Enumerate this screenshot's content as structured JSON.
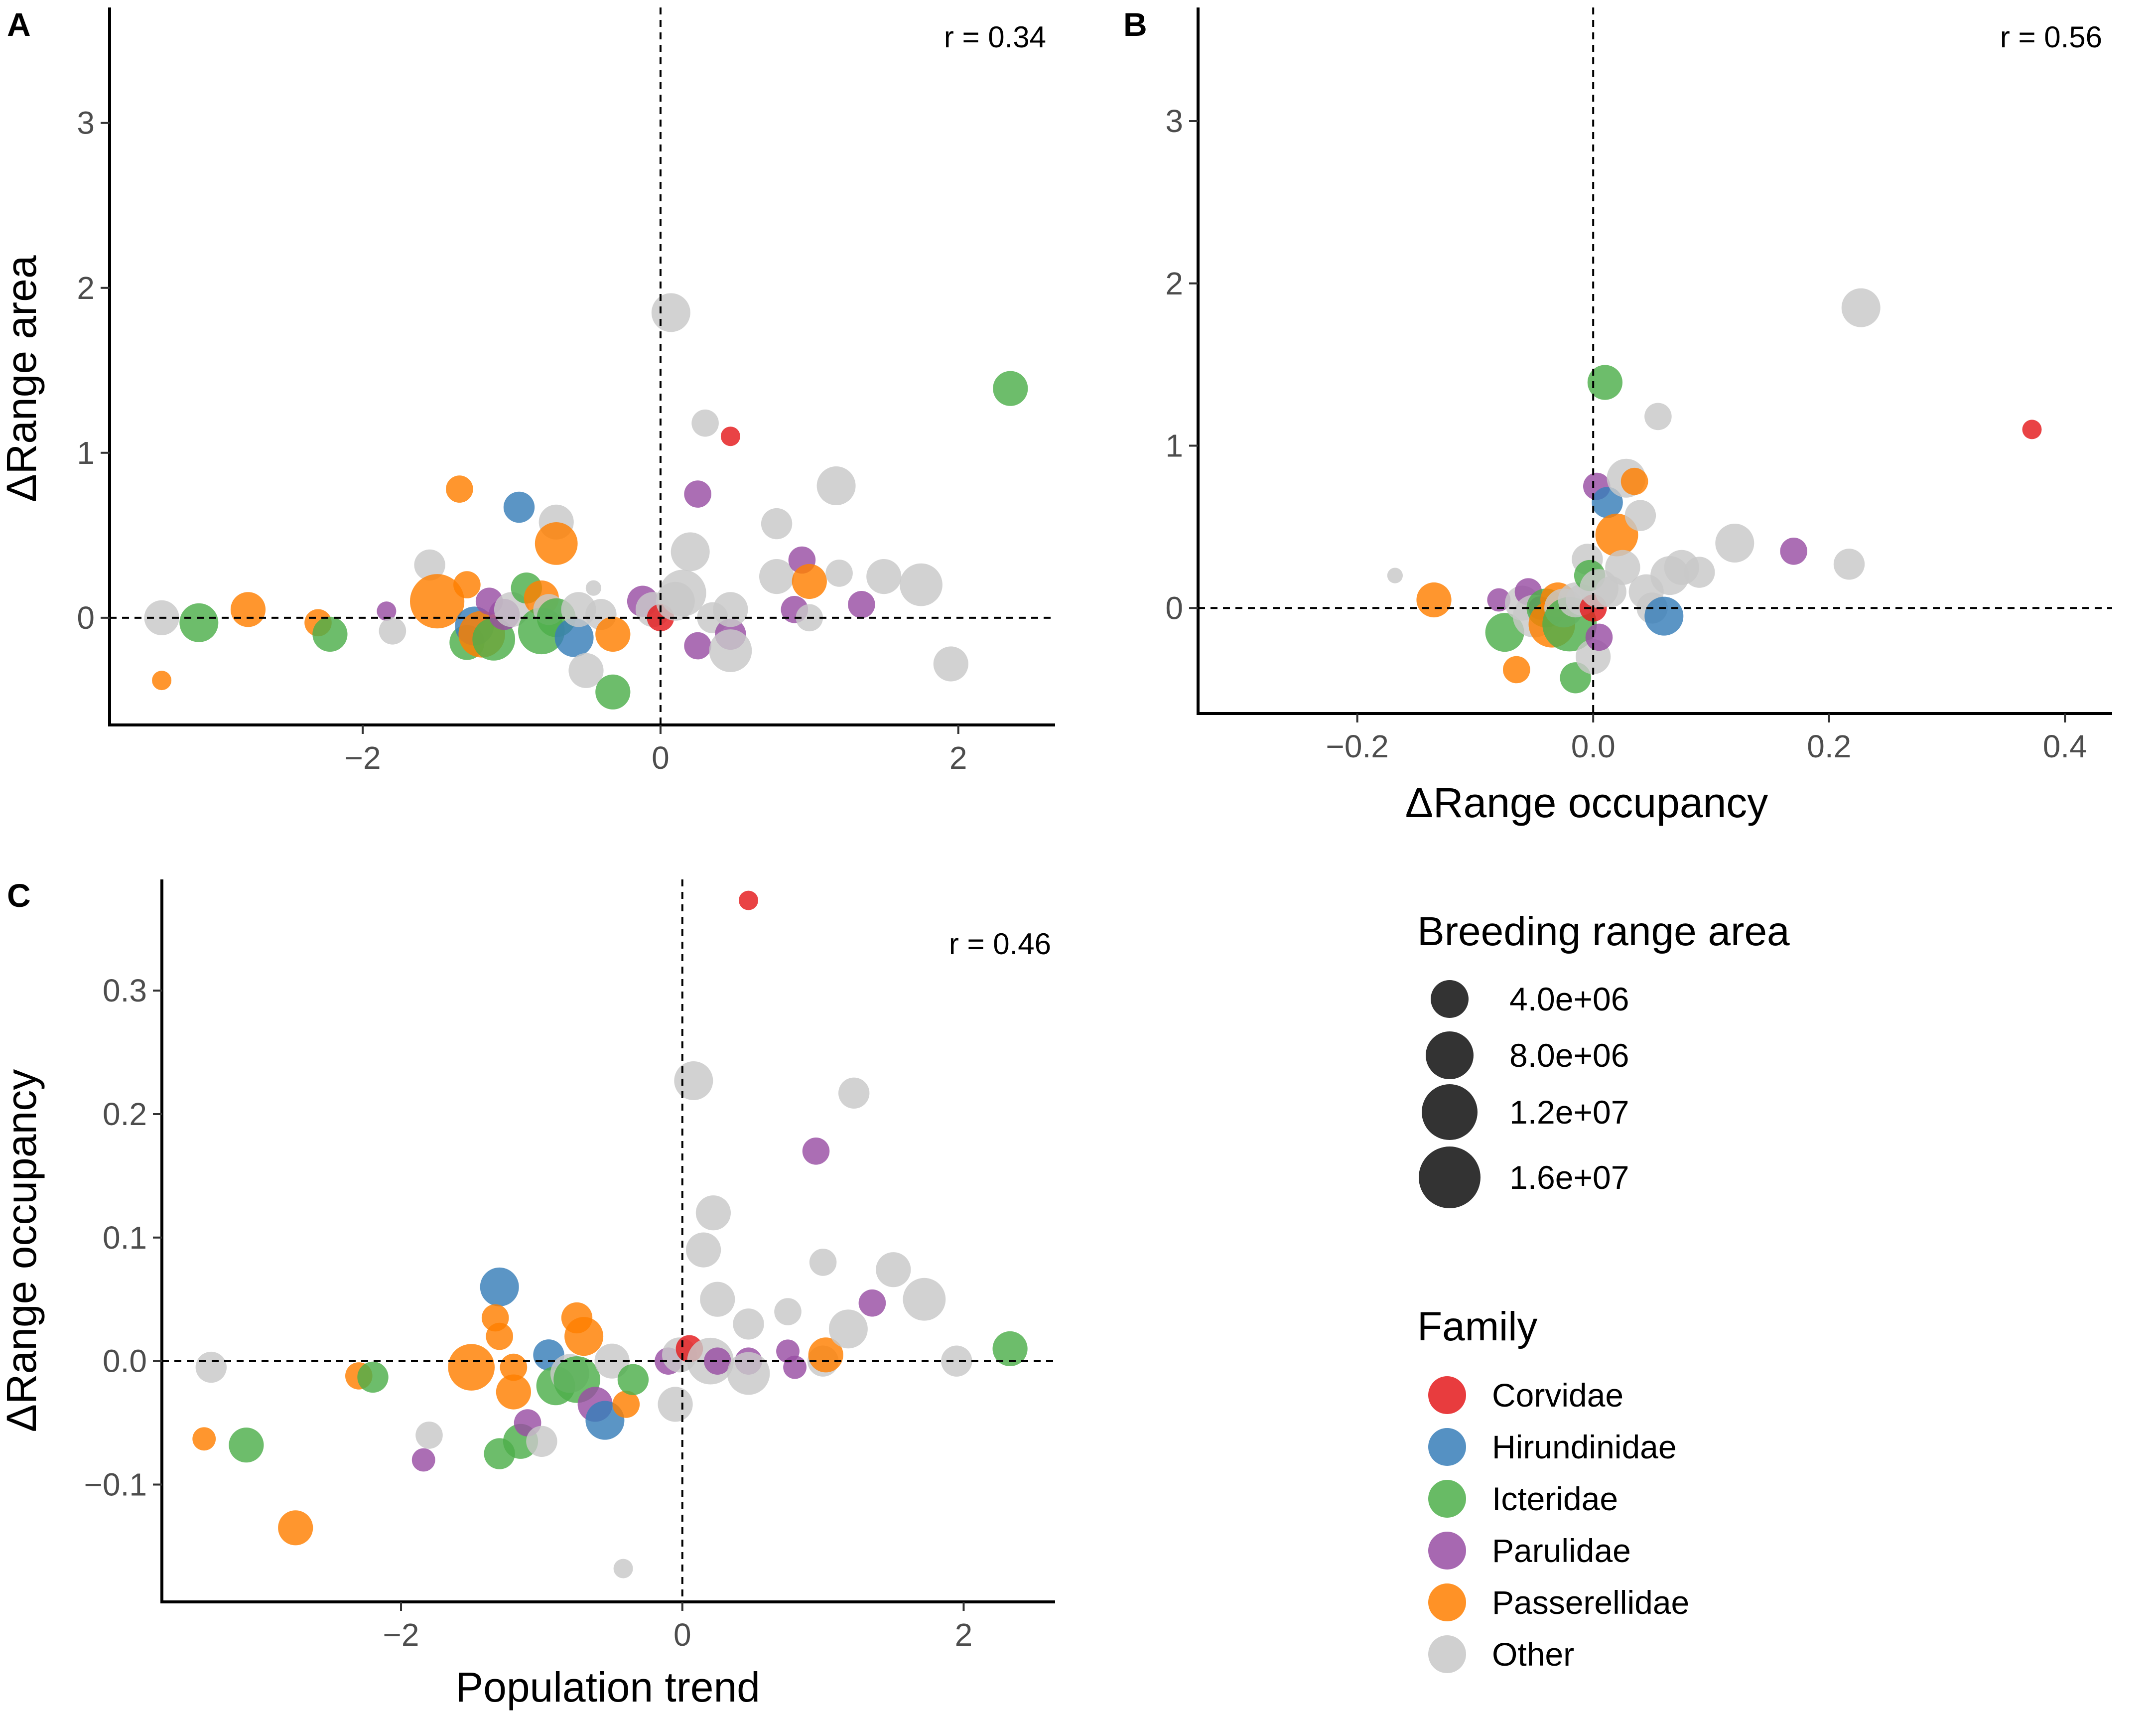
{
  "colors": {
    "Corvidae": "#E41A1C",
    "Hirundinidae": "#377EB8",
    "Icteridae": "#4DAF4A",
    "Parulidae": "#984EA3",
    "Passerellidae": "#FF7F00",
    "Other": "#C8C8C8"
  },
  "legend": {
    "size_title": "Breeding range area",
    "size_entries": [
      {
        "label": "4.0e+06",
        "value": 4000000
      },
      {
        "label": "8.0e+06",
        "value": 8000000
      },
      {
        "label": "1.2e+07",
        "value": 12000000
      },
      {
        "label": "1.6e+07",
        "value": 16000000
      }
    ],
    "family_title": "Family",
    "families": [
      "Corvidae",
      "Hirundinidae",
      "Icteridae",
      "Parulidae",
      "Passerellidae",
      "Other"
    ]
  },
  "chart_data": [
    {
      "panel": "A",
      "type": "scatter",
      "title": "",
      "xlabel": "",
      "ylabel": "ΔRange area",
      "annotation": "r = 0.34",
      "xlim": [
        -3.7,
        2.65
      ],
      "ylim": [
        -0.65,
        3.7
      ],
      "xticks": [
        {
          "v": -2,
          "label": "−2"
        },
        {
          "v": 0,
          "label": "0"
        },
        {
          "v": 2,
          "label": "2"
        }
      ],
      "yticks": [
        {
          "v": 0,
          "label": "0"
        },
        {
          "v": 1,
          "label": "1"
        },
        {
          "v": 2,
          "label": "2"
        },
        {
          "v": 3,
          "label": "3"
        }
      ],
      "refline_x": 0,
      "refline_y": 0,
      "points": [
        [
          -3.35,
          -0.38,
          "Passerellidae",
          5
        ],
        [
          -3.35,
          0.0,
          "Other",
          9
        ],
        [
          -3.1,
          -0.03,
          "Icteridae",
          10
        ],
        [
          -2.77,
          0.05,
          "Passerellidae",
          9
        ],
        [
          -2.3,
          -0.03,
          "Passerellidae",
          7
        ],
        [
          -2.22,
          -0.1,
          "Icteridae",
          9
        ],
        [
          -1.84,
          0.04,
          "Parulidae",
          5
        ],
        [
          -1.8,
          -0.08,
          "Other",
          7
        ],
        [
          -1.55,
          0.32,
          "Other",
          8
        ],
        [
          -1.5,
          0.1,
          "Passerellidae",
          14
        ],
        [
          -1.35,
          0.78,
          "Passerellidae",
          7
        ],
        [
          -1.3,
          0.2,
          "Passerellidae",
          7
        ],
        [
          -1.3,
          -0.15,
          "Icteridae",
          9
        ],
        [
          -1.25,
          -0.05,
          "Hirundinidae",
          10
        ],
        [
          -1.2,
          -0.1,
          "Passerellidae",
          12
        ],
        [
          -1.15,
          0.1,
          "Parulidae",
          7
        ],
        [
          -1.12,
          -0.13,
          "Icteridae",
          11
        ],
        [
          -1.05,
          0.02,
          "Parulidae",
          8
        ],
        [
          -1.0,
          0.05,
          "Other",
          9
        ],
        [
          -0.95,
          0.67,
          "Hirundinidae",
          8
        ],
        [
          -0.9,
          0.18,
          "Icteridae",
          8
        ],
        [
          -0.8,
          0.12,
          "Passerellidae",
          9
        ],
        [
          -0.8,
          -0.08,
          "Icteridae",
          12
        ],
        [
          -0.75,
          0.05,
          "Other",
          8
        ],
        [
          -0.7,
          0.58,
          "Other",
          9
        ],
        [
          -0.7,
          0.45,
          "Passerellidae",
          11
        ],
        [
          -0.7,
          0.0,
          "Icteridae",
          10
        ],
        [
          -0.58,
          -0.12,
          "Hirundinidae",
          10
        ],
        [
          -0.55,
          0.05,
          "Other",
          9
        ],
        [
          -0.5,
          -0.32,
          "Other",
          9
        ],
        [
          -0.45,
          0.18,
          "Other",
          4
        ],
        [
          -0.4,
          0.02,
          "Other",
          8
        ],
        [
          -0.32,
          -0.1,
          "Passerellidae",
          9
        ],
        [
          -0.32,
          -0.45,
          "Icteridae",
          9
        ],
        [
          -0.12,
          0.1,
          "Parulidae",
          8
        ],
        [
          -0.05,
          0.05,
          "Other",
          9
        ],
        [
          0.0,
          0.0,
          "Corvidae",
          7
        ],
        [
          0.07,
          1.85,
          "Other",
          10
        ],
        [
          0.1,
          0.1,
          "Other",
          10
        ],
        [
          0.15,
          0.15,
          "Other",
          12
        ],
        [
          0.2,
          0.4,
          "Other",
          10
        ],
        [
          0.25,
          0.75,
          "Parulidae",
          7
        ],
        [
          0.25,
          -0.17,
          "Parulidae",
          7
        ],
        [
          0.3,
          1.18,
          "Other",
          7
        ],
        [
          0.35,
          0.0,
          "Other",
          8
        ],
        [
          0.47,
          1.1,
          "Corvidae",
          5
        ],
        [
          0.47,
          -0.1,
          "Parulidae",
          8
        ],
        [
          0.47,
          0.05,
          "Other",
          9
        ],
        [
          0.47,
          -0.2,
          "Other",
          11
        ],
        [
          0.78,
          0.57,
          "Other",
          8
        ],
        [
          0.78,
          0.25,
          "Other",
          9
        ],
        [
          0.9,
          0.05,
          "Parulidae",
          7
        ],
        [
          0.95,
          0.35,
          "Parulidae",
          7
        ],
        [
          1.0,
          0.22,
          "Passerellidae",
          9
        ],
        [
          1.0,
          0.0,
          "Other",
          7
        ],
        [
          1.18,
          0.8,
          "Other",
          10
        ],
        [
          1.2,
          0.27,
          "Other",
          7
        ],
        [
          1.35,
          0.08,
          "Parulidae",
          7
        ],
        [
          1.5,
          0.25,
          "Other",
          9
        ],
        [
          1.75,
          0.2,
          "Other",
          11
        ],
        [
          1.95,
          -0.28,
          "Other",
          9
        ],
        [
          2.35,
          1.39,
          "Icteridae",
          9
        ]
      ]
    },
    {
      "panel": "B",
      "type": "scatter",
      "title": "",
      "xlabel": "ΔRange occupancy",
      "ylabel": "",
      "annotation": "r = 0.56",
      "xlim": [
        -0.335,
        0.44
      ],
      "ylim": [
        -0.65,
        3.7
      ],
      "xticks": [
        {
          "v": -0.2,
          "label": "−0.2"
        },
        {
          "v": 0.0,
          "label": "0.0"
        },
        {
          "v": 0.2,
          "label": "0.2"
        },
        {
          "v": 0.4,
          "label": "0.4"
        }
      ],
      "yticks": [
        {
          "v": 0,
          "label": "0"
        },
        {
          "v": 1,
          "label": "1"
        },
        {
          "v": 2,
          "label": "2"
        },
        {
          "v": 3,
          "label": "3"
        }
      ],
      "refline_x": 0,
      "refline_y": 0,
      "points": [
        [
          -0.168,
          0.2,
          "Other",
          4
        ],
        [
          -0.135,
          0.05,
          "Passerellidae",
          9
        ],
        [
          -0.08,
          0.05,
          "Parulidae",
          6
        ],
        [
          -0.075,
          -0.15,
          "Icteridae",
          10
        ],
        [
          -0.065,
          -0.38,
          "Passerellidae",
          7
        ],
        [
          -0.06,
          0.03,
          "Other",
          9
        ],
        [
          -0.055,
          0.1,
          "Parulidae",
          7
        ],
        [
          -0.05,
          -0.05,
          "Other",
          11
        ],
        [
          -0.045,
          0.0,
          "Parulidae",
          6
        ],
        [
          -0.04,
          0.0,
          "Icteridae",
          10
        ],
        [
          -0.035,
          -0.1,
          "Passerellidae",
          12
        ],
        [
          -0.03,
          0.05,
          "Passerellidae",
          9
        ],
        [
          -0.025,
          0.0,
          "Other",
          10
        ],
        [
          -0.02,
          -0.1,
          "Icteridae",
          14
        ],
        [
          -0.015,
          0.05,
          "Other",
          9
        ],
        [
          -0.015,
          -0.43,
          "Icteridae",
          8
        ],
        [
          -0.01,
          0.05,
          "Other",
          8
        ],
        [
          -0.005,
          0.3,
          "Other",
          8
        ],
        [
          -0.003,
          0.2,
          "Icteridae",
          8
        ],
        [
          0.0,
          -0.3,
          "Other",
          9
        ],
        [
          0.0,
          0.0,
          "Corvidae",
          7
        ],
        [
          0.003,
          0.75,
          "Parulidae",
          7
        ],
        [
          0.005,
          0.12,
          "Other",
          10
        ],
        [
          0.005,
          -0.18,
          "Parulidae",
          7
        ],
        [
          0.01,
          1.39,
          "Icteridae",
          9
        ],
        [
          0.012,
          0.65,
          "Hirundinidae",
          8
        ],
        [
          0.015,
          0.1,
          "Other",
          8
        ],
        [
          0.02,
          0.45,
          "Passerellidae",
          11
        ],
        [
          0.025,
          0.25,
          "Other",
          9
        ],
        [
          0.028,
          0.8,
          "Other",
          10
        ],
        [
          0.035,
          0.78,
          "Passerellidae",
          7
        ],
        [
          0.04,
          0.57,
          "Other",
          8
        ],
        [
          0.045,
          0.1,
          "Other",
          9
        ],
        [
          0.05,
          0.0,
          "Other",
          8
        ],
        [
          0.055,
          1.18,
          "Other",
          7
        ],
        [
          0.06,
          -0.05,
          "Hirundinidae",
          10
        ],
        [
          0.065,
          0.2,
          "Other",
          10
        ],
        [
          0.075,
          0.25,
          "Other",
          9
        ],
        [
          0.09,
          0.22,
          "Other",
          8
        ],
        [
          0.12,
          0.4,
          "Other",
          10
        ],
        [
          0.17,
          0.35,
          "Parulidae",
          7
        ],
        [
          0.217,
          0.27,
          "Other",
          8
        ],
        [
          0.227,
          1.85,
          "Other",
          10
        ],
        [
          0.372,
          1.1,
          "Corvidae",
          5
        ]
      ]
    },
    {
      "panel": "C",
      "type": "scatter",
      "title": "",
      "xlabel": "Population trend",
      "ylabel": "ΔRange occupancy",
      "annotation": "r = 0.46",
      "xlim": [
        -3.7,
        2.65
      ],
      "ylim": [
        -0.195,
        0.39
      ],
      "xticks": [
        {
          "v": -2,
          "label": "−2"
        },
        {
          "v": 0,
          "label": "0"
        },
        {
          "v": 2,
          "label": "2"
        }
      ],
      "yticks": [
        {
          "v": -0.1,
          "label": "−0.1"
        },
        {
          "v": 0.0,
          "label": "0.0"
        },
        {
          "v": 0.1,
          "label": "0.1"
        },
        {
          "v": 0.2,
          "label": "0.2"
        },
        {
          "v": 0.3,
          "label": "0.3"
        }
      ],
      "refline_x": 0,
      "refline_y": 0,
      "points": [
        [
          -3.4,
          -0.063,
          "Passerellidae",
          6
        ],
        [
          -3.35,
          -0.005,
          "Other",
          8
        ],
        [
          -3.1,
          -0.068,
          "Icteridae",
          9
        ],
        [
          -2.75,
          -0.135,
          "Passerellidae",
          9
        ],
        [
          -2.3,
          -0.012,
          "Passerellidae",
          7
        ],
        [
          -2.2,
          -0.013,
          "Icteridae",
          8
        ],
        [
          -1.84,
          -0.08,
          "Parulidae",
          6
        ],
        [
          -1.8,
          -0.06,
          "Other",
          7
        ],
        [
          -1.5,
          -0.005,
          "Passerellidae",
          12
        ],
        [
          -1.3,
          0.06,
          "Hirundinidae",
          10
        ],
        [
          -1.33,
          0.035,
          "Passerellidae",
          7
        ],
        [
          -1.3,
          0.02,
          "Passerellidae",
          7
        ],
        [
          -1.3,
          -0.075,
          "Icteridae",
          8
        ],
        [
          -1.2,
          -0.005,
          "Passerellidae",
          7
        ],
        [
          -1.2,
          -0.025,
          "Passerellidae",
          9
        ],
        [
          -1.15,
          -0.065,
          "Icteridae",
          9
        ],
        [
          -1.1,
          -0.05,
          "Parulidae",
          7
        ],
        [
          -1.0,
          -0.065,
          "Other",
          8
        ],
        [
          -0.95,
          0.005,
          "Hirundinidae",
          8
        ],
        [
          -0.9,
          -0.02,
          "Icteridae",
          10
        ],
        [
          -0.8,
          -0.01,
          "Other",
          10
        ],
        [
          -0.75,
          0.035,
          "Passerellidae",
          8
        ],
        [
          -0.75,
          -0.015,
          "Icteridae",
          12
        ],
        [
          -0.7,
          0.02,
          "Passerellidae",
          10
        ],
        [
          -0.62,
          -0.035,
          "Parulidae",
          9
        ],
        [
          -0.55,
          -0.048,
          "Hirundinidae",
          10
        ],
        [
          -0.5,
          0.0,
          "Other",
          9
        ],
        [
          -0.42,
          -0.168,
          "Other",
          5
        ],
        [
          -0.4,
          -0.035,
          "Passerellidae",
          7
        ],
        [
          -0.35,
          -0.015,
          "Icteridae",
          8
        ],
        [
          -0.1,
          0.0,
          "Parulidae",
          7
        ],
        [
          -0.05,
          -0.035,
          "Other",
          9
        ],
        [
          -0.02,
          0.005,
          "Other",
          9
        ],
        [
          0.05,
          0.01,
          "Corvidae",
          7
        ],
        [
          0.08,
          0.227,
          "Other",
          10
        ],
        [
          0.15,
          0.09,
          "Other",
          9
        ],
        [
          0.2,
          0.0,
          "Other",
          12
        ],
        [
          0.22,
          0.12,
          "Other",
          9
        ],
        [
          0.25,
          0.05,
          "Other",
          9
        ],
        [
          0.25,
          0.0,
          "Parulidae",
          7
        ],
        [
          0.47,
          0.373,
          "Corvidae",
          5
        ],
        [
          0.47,
          0.03,
          "Other",
          8
        ],
        [
          0.47,
          0.0,
          "Parulidae",
          7
        ],
        [
          0.47,
          -0.01,
          "Other",
          11
        ],
        [
          0.75,
          0.04,
          "Other",
          7
        ],
        [
          0.75,
          0.008,
          "Parulidae",
          6
        ],
        [
          0.8,
          -0.005,
          "Parulidae",
          6
        ],
        [
          0.95,
          0.17,
          "Parulidae",
          7
        ],
        [
          1.0,
          0.08,
          "Other",
          7
        ],
        [
          1.0,
          0.0,
          "Other",
          8
        ],
        [
          1.02,
          0.005,
          "Passerellidae",
          9
        ],
        [
          1.18,
          0.026,
          "Other",
          10
        ],
        [
          1.22,
          0.217,
          "Other",
          8
        ],
        [
          1.35,
          0.047,
          "Parulidae",
          7
        ],
        [
          1.5,
          0.074,
          "Other",
          9
        ],
        [
          1.72,
          0.05,
          "Other",
          11
        ],
        [
          1.95,
          0.0,
          "Other",
          8
        ],
        [
          2.33,
          0.01,
          "Icteridae",
          9
        ]
      ]
    }
  ]
}
